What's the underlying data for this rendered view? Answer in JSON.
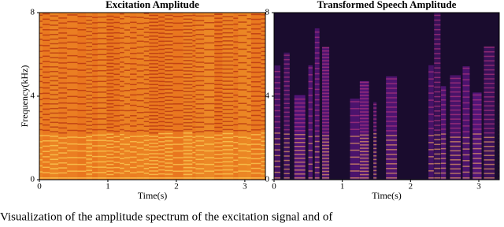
{
  "chart_data": [
    {
      "type": "spectrogram",
      "title": "Excitation Amplitude",
      "xlabel": "Time(s)",
      "ylabel": "Frequency(kHz)",
      "xlim": [
        0,
        3.3
      ],
      "ylim": [
        0,
        8
      ],
      "xticks": [
        0,
        1,
        2,
        3
      ],
      "yticks": [
        0,
        4,
        8
      ],
      "colors": [
        "#f0a030",
        "#e8701c",
        "#a8200e",
        "#ffe060"
      ]
    },
    {
      "type": "spectrogram",
      "title": "Transformed Speech Amplitude",
      "xlabel": "Time(s)",
      "xlim": [
        0,
        3.3
      ],
      "ylim": [
        0,
        8
      ],
      "xticks": [
        0,
        1,
        2,
        3
      ],
      "yticks": [
        0,
        4,
        8
      ],
      "colors": [
        "#1a0c2e",
        "#5a1680",
        "#c03a80",
        "#fcb060"
      ]
    }
  ],
  "caption": "Visualization of the amplitude spectrum of the excitation signal and of"
}
